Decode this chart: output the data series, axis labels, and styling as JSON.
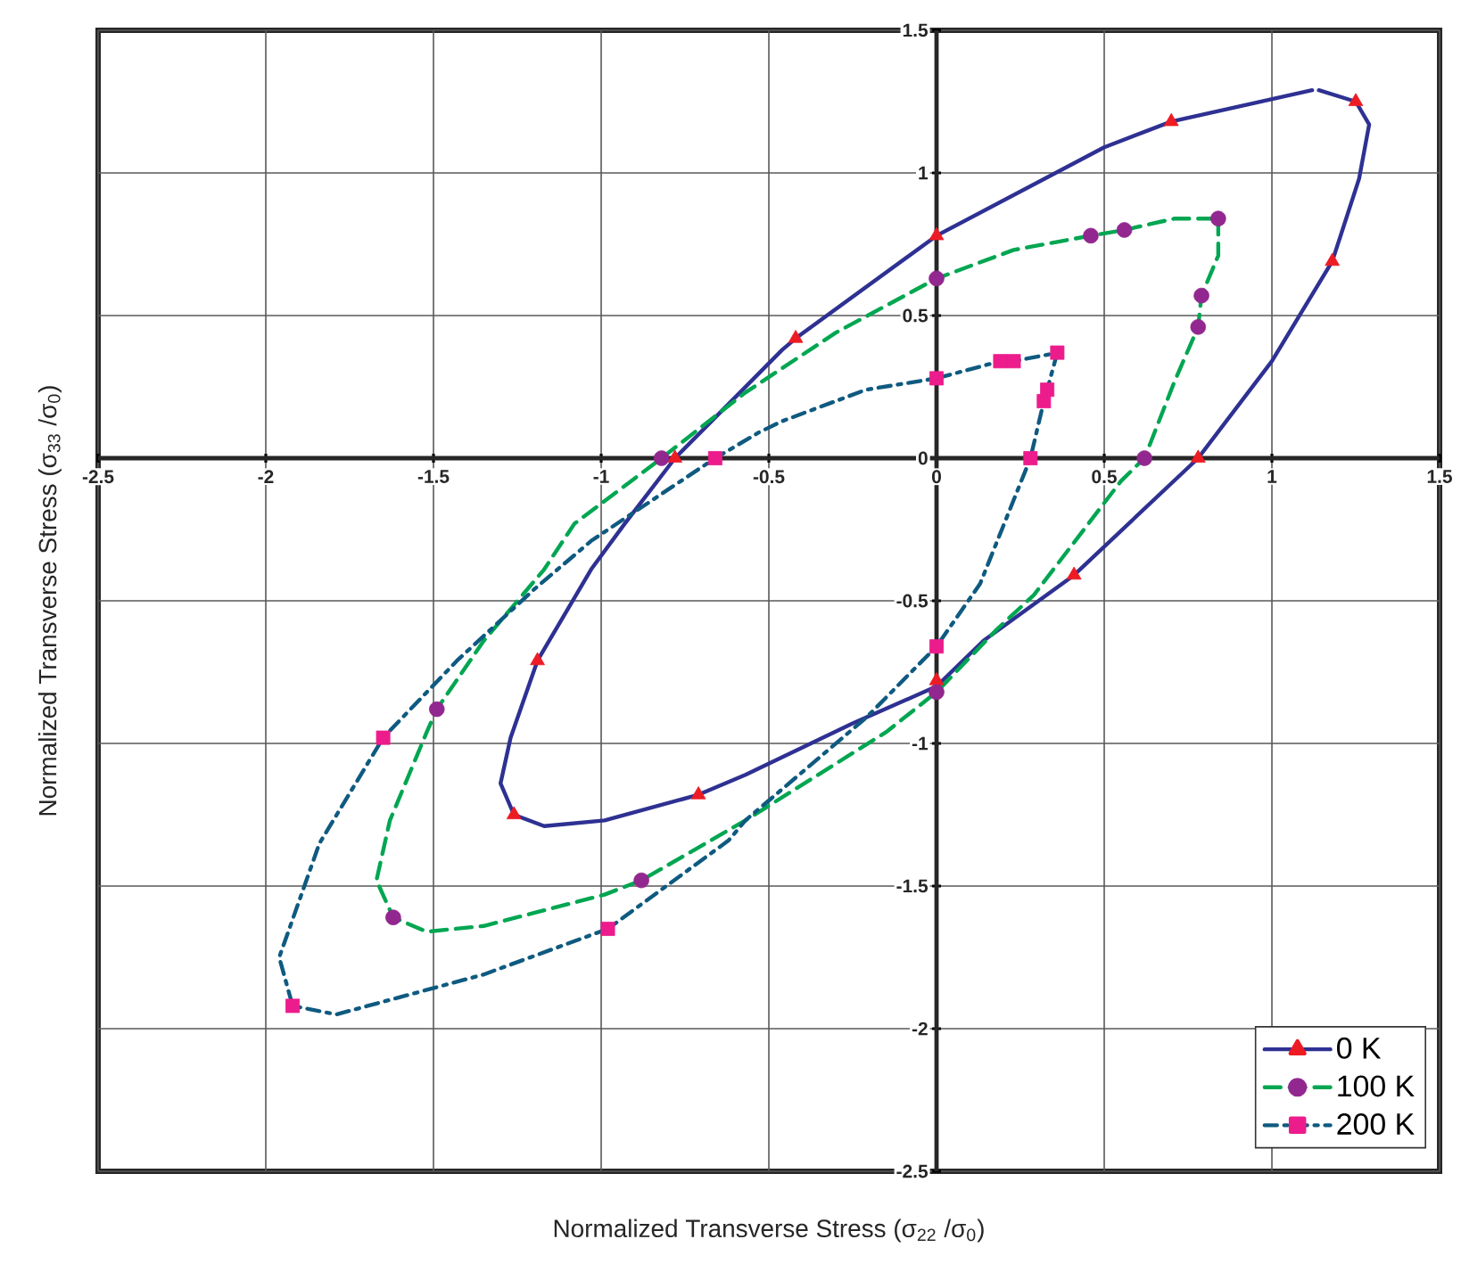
{
  "chart_data": {
    "type": "line",
    "xlabel": "Normalized Transverse Stress (σ$_{22}$ /σ$_{0}$)",
    "ylabel": "Normalized Transverse Stress (σ$_{33}$ /σ$_{0}$)",
    "xlim": [
      -2.5,
      1.5
    ],
    "ylim": [
      -2.5,
      1.5
    ],
    "xticks": [
      -2.5,
      -2,
      -1.5,
      -1,
      -0.5,
      0,
      0.5,
      1,
      1.5
    ],
    "yticks": [
      -2.5,
      -2,
      -1.5,
      -1,
      -0.5,
      0,
      0.5,
      1,
      1.5
    ],
    "grid": true,
    "legend": "bottom right",
    "series": [
      {
        "type": "line",
        "name": "0 K",
        "color": "#2e3192",
        "line_style": "solid",
        "x": [
          1.14,
          1.25,
          1.29,
          1.26,
          1.18,
          1.0,
          0.78,
          0.41,
          0.14,
          0.0,
          -0.25,
          -0.57,
          -0.71,
          -0.99,
          -1.17,
          -1.26,
          -1.3,
          -1.27,
          -1.19,
          -1.03,
          -0.93,
          -0.78,
          -0.46,
          -0.42,
          0.0,
          0.5,
          0.7,
          1.12
        ],
        "values": [
          1.29,
          1.25,
          1.17,
          0.98,
          0.69,
          0.34,
          0.0,
          -0.41,
          -0.64,
          -0.8,
          -0.93,
          -1.11,
          -1.18,
          -1.27,
          -1.29,
          -1.25,
          -1.14,
          -0.98,
          -0.71,
          -0.39,
          -0.23,
          0.0,
          0.38,
          0.42,
          0.78,
          1.09,
          1.18,
          1.29
        ]
      },
      {
        "type": "scatter",
        "color": "#ed1c24",
        "marker": "triangle",
        "x": [
          1.25,
          1.18,
          0.78,
          0.41,
          0.0,
          -0.71,
          -1.26,
          -1.19,
          -0.78,
          -0.42,
          0.0,
          0.7
        ],
        "values": [
          1.25,
          0.69,
          0.0,
          -0.41,
          -0.78,
          -1.18,
          -1.25,
          -0.71,
          0.0,
          0.42,
          0.78,
          1.18
        ]
      },
      {
        "type": "line",
        "name": "100 K",
        "color": "#00a651",
        "line_style": "dashed",
        "x": [
          0.84,
          0.84,
          0.79,
          0.78,
          0.71,
          0.62,
          0.55,
          0.29,
          0.18,
          0.0,
          -0.15,
          -0.57,
          -0.88,
          -0.99,
          -1.35,
          -1.52,
          -1.62,
          -1.67,
          -1.63,
          -1.52,
          -1.49,
          -1.35,
          -1.17,
          -1.08,
          -0.82,
          -0.57,
          -0.3,
          0.0,
          0.23,
          0.46,
          0.56,
          0.71,
          0.82
        ],
        "values": [
          0.84,
          0.71,
          0.57,
          0.46,
          0.27,
          0.0,
          -0.08,
          -0.48,
          -0.6,
          -0.82,
          -0.96,
          -1.27,
          -1.48,
          -1.53,
          -1.64,
          -1.66,
          -1.61,
          -1.48,
          -1.27,
          -0.96,
          -0.88,
          -0.64,
          -0.39,
          -0.23,
          0.0,
          0.23,
          0.44,
          0.63,
          0.73,
          0.78,
          0.8,
          0.84,
          0.84
        ]
      },
      {
        "type": "scatter",
        "color": "#92278f",
        "marker": "circle",
        "x": [
          0.84,
          0.56,
          0.46,
          0.0,
          0.79,
          0.78,
          0.62,
          0.0,
          -0.88,
          -1.62,
          -1.49,
          -0.82
        ],
        "values": [
          0.84,
          0.8,
          0.78,
          0.63,
          0.57,
          0.46,
          0.0,
          -0.82,
          -1.48,
          -1.61,
          -0.88,
          0.0
        ]
      },
      {
        "type": "line",
        "name": "200 K",
        "color": "#0f5a80",
        "line_style": "dashdot",
        "x": [
          0.36,
          0.33,
          0.32,
          0.28,
          0.13,
          0.0,
          -0.21,
          -0.57,
          -0.62,
          -0.98,
          -1.35,
          -1.79,
          -1.92,
          -1.96,
          -1.84,
          -1.65,
          -1.43,
          -1.2,
          -1.03,
          -0.66,
          -0.53,
          -0.46,
          -0.21,
          0.0,
          0.19,
          0.23,
          0.34
        ],
        "values": [
          0.37,
          0.24,
          0.2,
          0.0,
          -0.44,
          -0.66,
          -0.91,
          -1.27,
          -1.34,
          -1.65,
          -1.81,
          -1.95,
          -1.92,
          -1.75,
          -1.35,
          -0.98,
          -0.71,
          -0.46,
          -0.29,
          0.0,
          0.09,
          0.13,
          0.24,
          0.28,
          0.34,
          0.34,
          0.365
        ]
      },
      {
        "type": "scatter",
        "color": "#ec1c8c",
        "marker": "square",
        "x": [
          0.0,
          0.19,
          0.23,
          0.36,
          0.33,
          0.32,
          0.28,
          -0.66,
          0.0,
          -1.65,
          -1.92,
          -0.98
        ],
        "values": [
          0.28,
          0.34,
          0.34,
          0.37,
          0.24,
          0.2,
          0.0,
          0.0,
          -0.66,
          -0.98,
          -1.92,
          -1.65
        ]
      }
    ]
  }
}
